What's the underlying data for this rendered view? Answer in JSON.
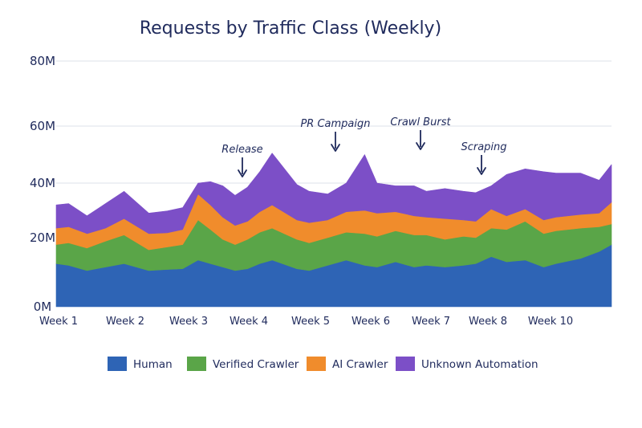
{
  "chart_data": {
    "type": "area",
    "stacked": true,
    "title": "Requests by Traffic Class (Weekly)",
    "xlabel": "",
    "ylabel": "",
    "y_tick_labels": [
      "0M",
      "20M",
      "40M",
      "60M",
      "80M"
    ],
    "y_ticks": [
      0,
      20,
      40,
      60,
      80
    ],
    "ylim": [
      0,
      80
    ],
    "grid": true,
    "legend_position": "bottom",
    "x_tick_labels": [
      "Week 1",
      "Week 2",
      "Week 3",
      "Week 4",
      "Week 5",
      "Week 6",
      "Week 7",
      "Week 8",
      "Week 10"
    ],
    "x_tick_positions": [
      1,
      2,
      3,
      4,
      5,
      6,
      7,
      8,
      9
    ],
    "x": [
      0.9,
      1.1,
      1.4,
      1.7,
      2.0,
      2.4,
      2.7,
      2.95,
      3.2,
      3.4,
      3.6,
      3.8,
      4.0,
      4.2,
      4.4,
      4.8,
      5.0,
      5.3,
      5.6,
      5.9,
      6.1,
      6.4,
      6.7,
      6.9,
      7.2,
      7.5,
      7.7,
      7.95,
      8.2,
      8.5,
      8.8,
      9.0,
      9.4,
      9.7,
      9.9
    ],
    "series": [
      {
        "name": "Human",
        "color": "#2e64b5",
        "values": [
          12.5,
          12,
          10.5,
          11.5,
          12.5,
          10.5,
          10.8,
          11,
          13.5,
          12.5,
          11.5,
          10.5,
          11,
          12.5,
          13.5,
          11,
          10.5,
          12,
          13.5,
          12,
          11.5,
          13,
          11.5,
          12,
          11.5,
          12,
          12.5,
          14.5,
          13,
          13.5,
          11.5,
          12.5,
          14,
          16,
          18
        ]
      },
      {
        "name": "Verified Crawler",
        "color": "#5aa548",
        "values": [
          5.5,
          6.5,
          6.5,
          7.5,
          8.5,
          6,
          6.5,
          7,
          13,
          10.5,
          8,
          7.5,
          8.5,
          9.5,
          10,
          8.5,
          8,
          8,
          8.5,
          9.5,
          9,
          9.5,
          9.5,
          9,
          8,
          8.5,
          7.5,
          9,
          10,
          12.5,
          10,
          10,
          9.5,
          8,
          7
        ]
      },
      {
        "name": "AI Crawler",
        "color": "#f08c2c",
        "values": [
          5.5,
          5.5,
          4.5,
          4.5,
          6,
          5,
          4.5,
          5,
          9.5,
          9,
          8,
          6.5,
          6.5,
          7.5,
          8.5,
          7,
          7,
          6.5,
          7.5,
          8.5,
          8.5,
          7,
          7,
          6.5,
          7.5,
          6,
          6,
          7,
          5,
          4.5,
          5,
          5,
          5,
          5,
          8
        ]
      },
      {
        "name": "Unknown Automation",
        "color": "#7c4fc7",
        "values": [
          8.5,
          8.5,
          6.5,
          9,
          10,
          7.5,
          8,
          8,
          4,
          8.5,
          11.5,
          11,
          12.5,
          14.5,
          18.5,
          13,
          11.5,
          9.5,
          10.5,
          20,
          11,
          9.5,
          11,
          9.5,
          11,
          10.5,
          10.5,
          8.5,
          15,
          14.5,
          17.5,
          16,
          15,
          12,
          13.5
        ]
      }
    ],
    "annotations": [
      {
        "label": "Release",
        "x": 4.0
      },
      {
        "label": "PR Campaign",
        "x": 5.3
      },
      {
        "label": "Crawl Burst",
        "x": 6.7
      },
      {
        "label": "Scraping",
        "x": 7.95
      }
    ]
  }
}
